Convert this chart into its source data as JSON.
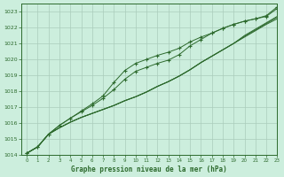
{
  "bg_color": "#cceedd",
  "grid_color": "#aaccbb",
  "line_color": "#2d6a2d",
  "xlabel": "Graphe pression niveau de la mer (hPa)",
  "ylim": [
    1014,
    1023.5
  ],
  "xlim": [
    -0.5,
    23
  ],
  "yticks": [
    1014,
    1015,
    1016,
    1017,
    1018,
    1019,
    1020,
    1021,
    1022,
    1023
  ],
  "xticks": [
    0,
    1,
    2,
    3,
    4,
    5,
    6,
    7,
    8,
    9,
    10,
    11,
    12,
    13,
    14,
    15,
    16,
    17,
    18,
    19,
    20,
    21,
    22,
    23
  ],
  "hours": [
    0,
    1,
    2,
    3,
    4,
    5,
    6,
    7,
    8,
    9,
    10,
    11,
    12,
    13,
    14,
    15,
    16,
    17,
    18,
    19,
    20,
    21,
    22,
    23
  ],
  "line_main1": [
    1014.1,
    1014.5,
    1015.3,
    1015.7,
    1016.05,
    1016.35,
    1016.6,
    1016.85,
    1017.1,
    1017.4,
    1017.65,
    1017.95,
    1018.3,
    1018.6,
    1018.95,
    1019.35,
    1019.8,
    1020.2,
    1020.6,
    1021.0,
    1021.4,
    1021.8,
    1022.2,
    1022.55
  ],
  "line_main2": [
    1014.1,
    1014.5,
    1015.3,
    1015.7,
    1016.05,
    1016.35,
    1016.6,
    1016.85,
    1017.1,
    1017.4,
    1017.65,
    1017.95,
    1018.3,
    1018.6,
    1018.95,
    1019.35,
    1019.8,
    1020.2,
    1020.6,
    1021.0,
    1021.45,
    1021.85,
    1022.25,
    1022.65
  ],
  "line_main3": [
    1014.1,
    1014.5,
    1015.3,
    1015.7,
    1016.05,
    1016.35,
    1016.6,
    1016.85,
    1017.1,
    1017.4,
    1017.65,
    1017.95,
    1018.3,
    1018.6,
    1018.95,
    1019.35,
    1019.8,
    1020.2,
    1020.6,
    1021.0,
    1021.5,
    1021.9,
    1022.3,
    1022.7
  ],
  "line_marked1": [
    1014.1,
    1014.5,
    1015.3,
    1015.85,
    1016.3,
    1016.7,
    1017.1,
    1017.55,
    1018.1,
    1018.75,
    1019.25,
    1019.5,
    1019.75,
    1019.95,
    1020.3,
    1020.85,
    1021.25,
    1021.65,
    1021.95,
    1022.2,
    1022.4,
    1022.55,
    1022.7,
    1023.2
  ],
  "line_marked2": [
    1014.1,
    1014.5,
    1015.3,
    1015.85,
    1016.3,
    1016.75,
    1017.2,
    1017.7,
    1018.55,
    1019.3,
    1019.75,
    1020.0,
    1020.25,
    1020.45,
    1020.7,
    1021.1,
    1021.4,
    1021.65,
    1021.95,
    1022.2,
    1022.4,
    1022.55,
    1022.75,
    1023.3
  ]
}
